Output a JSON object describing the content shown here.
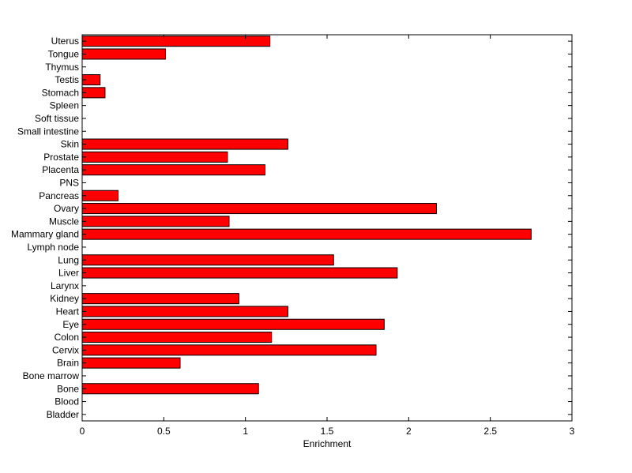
{
  "chart_data": {
    "type": "bar",
    "orientation": "horizontal",
    "title": "",
    "xlabel": "Enrichment",
    "ylabel": "",
    "xlim": [
      0,
      3
    ],
    "xticks": [
      "0",
      "0.5",
      "1",
      "1.5",
      "2",
      "2.5",
      "3"
    ],
    "grid": false,
    "bar_color": "#ff0000",
    "bar_edge_color": "#000000",
    "categories": [
      "Bladder",
      "Blood",
      "Bone",
      "Bone marrow",
      "Brain",
      "Cervix",
      "Colon",
      "Eye",
      "Heart",
      "Kidney",
      "Larynx",
      "Liver",
      "Lung",
      "Lymph node",
      "Mammary gland",
      "Muscle",
      "Ovary",
      "Pancreas",
      "PNS",
      "Placenta",
      "Prostate",
      "Skin",
      "Small intestine",
      "Soft tissue",
      "Spleen",
      "Stomach",
      "Testis",
      "Thymus",
      "Tongue",
      "Uterus"
    ],
    "values": [
      0,
      0,
      1.08,
      0,
      0.6,
      1.8,
      1.16,
      1.85,
      1.26,
      0.96,
      0,
      1.93,
      1.54,
      0,
      2.75,
      0.9,
      2.17,
      0.22,
      0,
      1.12,
      0.89,
      1.26,
      0,
      0,
      0,
      0.14,
      0.11,
      0,
      0.51,
      1.15
    ]
  }
}
